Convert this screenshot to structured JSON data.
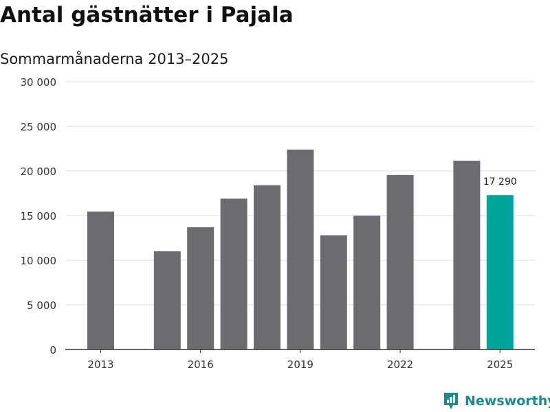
{
  "title": "Antal gästnätter i Pajala",
  "subtitle": "Sommarmånaderna 2013–2025",
  "brand": {
    "name": "Newsworthy",
    "icon": "newsworthy-logo-icon",
    "color": "#1a8a8a"
  },
  "chart_data": {
    "type": "bar",
    "categories": [
      "2013",
      "2014",
      "2015",
      "2016",
      "2017",
      "2018",
      "2019",
      "2020",
      "2021",
      "2022",
      "2023",
      "2024",
      "2025"
    ],
    "values": [
      15450,
      null,
      11000,
      13700,
      16900,
      18400,
      22400,
      12800,
      15000,
      19550,
      null,
      21150,
      17290
    ],
    "y_ticks": [
      0,
      5000,
      10000,
      15000,
      20000,
      25000,
      30000
    ],
    "y_tick_labels": [
      "0",
      "5 000",
      "10 000",
      "15 000",
      "20 000",
      "25 000",
      "30 000"
    ],
    "x_tick_labels": [
      "2013",
      "2016",
      "2019",
      "2022",
      "2025"
    ],
    "ylim": [
      0,
      30000
    ],
    "grid": true,
    "annotation": {
      "category": "2025",
      "text": "17 290"
    },
    "colors": {
      "bar": "#6b6b70",
      "highlight": "#00a49a",
      "grid": "#dddddd",
      "axis": "#333333"
    },
    "highlight_category": "2025"
  }
}
